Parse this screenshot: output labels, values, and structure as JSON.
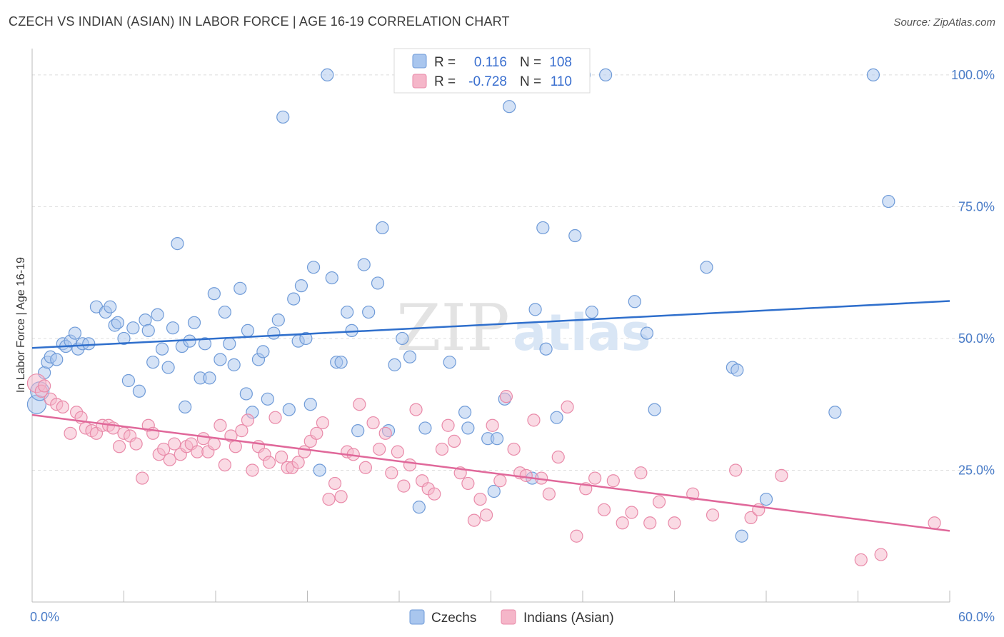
{
  "title": "CZECH VS INDIAN (ASIAN) IN LABOR FORCE | AGE 16-19 CORRELATION CHART",
  "source": "Source: ZipAtlas.com",
  "colors": {
    "czech_fill": "#a9c6ee",
    "czech_stroke": "#6f9bd8",
    "czech_line": "#2f6fcc",
    "indian_fill": "#f5b6c9",
    "indian_stroke": "#e98aa9",
    "indian_line": "#e0689a",
    "tick_label": "#4a7cc7",
    "grid": "#dddddd"
  },
  "chart_data": {
    "type": "scatter",
    "xlabel": "",
    "ylabel": "In Labor Force | Age 16-19",
    "xlim": [
      0,
      60
    ],
    "ylim": [
      0,
      105
    ],
    "x_tick_labels": [
      "0.0%",
      "60.0%"
    ],
    "y_ticks": [
      25,
      50,
      75,
      100
    ],
    "y_tick_labels": [
      "25.0%",
      "50.0%",
      "75.0%",
      "100.0%"
    ],
    "grid": "horizontal dashed",
    "legend_position": "top-center",
    "legend": [
      {
        "series": "Czechs",
        "r_label": "R =",
        "r": "0.116",
        "n_label": "N =",
        "n": "108"
      },
      {
        "series": "Indians (Asian)",
        "r_label": "R =",
        "r": "-0.728",
        "n_label": "N =",
        "n": "110"
      }
    ],
    "series": [
      {
        "name": "Czechs",
        "trend": {
          "x": [
            0,
            60
          ],
          "y": [
            48.2,
            57.1
          ]
        },
        "points": [
          [
            0.3,
            37.5
          ],
          [
            0.5,
            40.0
          ],
          [
            0.8,
            43.5
          ],
          [
            1.0,
            45.5
          ],
          [
            1.2,
            46.5
          ],
          [
            1.6,
            46.0
          ],
          [
            2.0,
            49.0
          ],
          [
            2.2,
            48.5
          ],
          [
            2.5,
            49.5
          ],
          [
            2.8,
            51.0
          ],
          [
            3.0,
            48.0
          ],
          [
            3.3,
            49.0
          ],
          [
            3.7,
            49.0
          ],
          [
            4.2,
            56.0
          ],
          [
            4.8,
            55.0
          ],
          [
            5.1,
            56.0
          ],
          [
            5.4,
            52.5
          ],
          [
            5.6,
            53.0
          ],
          [
            6.0,
            50.0
          ],
          [
            6.3,
            42.0
          ],
          [
            6.6,
            52.0
          ],
          [
            7.0,
            40.0
          ],
          [
            7.4,
            53.5
          ],
          [
            7.6,
            51.5
          ],
          [
            7.9,
            45.5
          ],
          [
            8.2,
            54.5
          ],
          [
            8.5,
            48.0
          ],
          [
            8.9,
            44.5
          ],
          [
            9.2,
            52.0
          ],
          [
            9.5,
            68.0
          ],
          [
            9.8,
            48.5
          ],
          [
            10.0,
            37.0
          ],
          [
            10.3,
            49.5
          ],
          [
            10.6,
            53.0
          ],
          [
            11.0,
            42.5
          ],
          [
            11.3,
            49.0
          ],
          [
            11.6,
            42.5
          ],
          [
            11.9,
            58.5
          ],
          [
            12.3,
            46.0
          ],
          [
            12.6,
            55.0
          ],
          [
            12.9,
            49.0
          ],
          [
            13.2,
            45.0
          ],
          [
            13.6,
            59.5
          ],
          [
            14.1,
            51.5
          ],
          [
            14.0,
            39.5
          ],
          [
            14.4,
            36.0
          ],
          [
            14.8,
            46.0
          ],
          [
            15.1,
            47.5
          ],
          [
            15.4,
            38.5
          ],
          [
            15.8,
            51.0
          ],
          [
            16.1,
            53.5
          ],
          [
            16.4,
            92.0
          ],
          [
            16.8,
            36.5
          ],
          [
            17.1,
            57.5
          ],
          [
            17.4,
            49.5
          ],
          [
            17.6,
            60.0
          ],
          [
            17.9,
            50.0
          ],
          [
            18.2,
            37.5
          ],
          [
            18.4,
            63.5
          ],
          [
            18.8,
            25.0
          ],
          [
            19.3,
            100.0
          ],
          [
            19.6,
            61.5
          ],
          [
            19.9,
            45.5
          ],
          [
            20.2,
            45.5
          ],
          [
            20.6,
            55.0
          ],
          [
            20.9,
            51.5
          ],
          [
            21.3,
            32.5
          ],
          [
            21.7,
            64.0
          ],
          [
            22.0,
            55.0
          ],
          [
            22.6,
            60.5
          ],
          [
            22.9,
            71.0
          ],
          [
            23.3,
            32.5
          ],
          [
            23.7,
            45.0
          ],
          [
            24.2,
            50.0
          ],
          [
            24.7,
            46.5
          ],
          [
            25.3,
            18.0
          ],
          [
            25.7,
            33.0
          ],
          [
            27.3,
            45.5
          ],
          [
            28.3,
            36.0
          ],
          [
            28.5,
            33.0
          ],
          [
            29.6,
            100.0
          ],
          [
            29.8,
            31.0
          ],
          [
            30.2,
            21.0
          ],
          [
            30.4,
            31.0
          ],
          [
            30.9,
            38.5
          ],
          [
            31.2,
            94.0
          ],
          [
            32.7,
            23.5
          ],
          [
            32.9,
            55.5
          ],
          [
            33.4,
            71.0
          ],
          [
            33.6,
            48.0
          ],
          [
            34.3,
            35.0
          ],
          [
            35.5,
            69.5
          ],
          [
            36.1,
            100.0
          ],
          [
            36.6,
            55.0
          ],
          [
            37.5,
            100.0
          ],
          [
            39.4,
            57.0
          ],
          [
            40.2,
            51.0
          ],
          [
            40.7,
            36.5
          ],
          [
            44.1,
            63.5
          ],
          [
            45.8,
            44.5
          ],
          [
            46.1,
            44.0
          ],
          [
            46.4,
            12.5
          ],
          [
            48.0,
            19.5
          ],
          [
            52.5,
            36.0
          ],
          [
            55.0,
            100.0
          ],
          [
            56.0,
            76.0
          ]
        ]
      },
      {
        "name": "Indians (Asian)",
        "trend": {
          "x": [
            0,
            60
          ],
          "y": [
            35.5,
            13.5
          ]
        },
        "points": [
          [
            0.3,
            41.5
          ],
          [
            0.6,
            40.0
          ],
          [
            0.8,
            41.0
          ],
          [
            1.2,
            38.5
          ],
          [
            1.6,
            37.5
          ],
          [
            2.0,
            37.0
          ],
          [
            2.5,
            32.0
          ],
          [
            2.9,
            36.0
          ],
          [
            3.2,
            35.0
          ],
          [
            3.5,
            33.0
          ],
          [
            3.9,
            32.5
          ],
          [
            4.2,
            32.0
          ],
          [
            4.6,
            33.5
          ],
          [
            5.0,
            33.5
          ],
          [
            5.3,
            33.0
          ],
          [
            5.7,
            29.5
          ],
          [
            6.0,
            32.0
          ],
          [
            6.4,
            31.5
          ],
          [
            6.8,
            30.0
          ],
          [
            7.2,
            23.5
          ],
          [
            7.6,
            33.5
          ],
          [
            7.9,
            32.0
          ],
          [
            8.3,
            28.0
          ],
          [
            8.6,
            29.0
          ],
          [
            9.0,
            27.0
          ],
          [
            9.3,
            30.0
          ],
          [
            9.7,
            28.0
          ],
          [
            10.1,
            29.5
          ],
          [
            10.4,
            30.0
          ],
          [
            10.8,
            28.5
          ],
          [
            11.2,
            31.0
          ],
          [
            11.5,
            28.5
          ],
          [
            11.9,
            30.0
          ],
          [
            12.3,
            33.5
          ],
          [
            12.6,
            26.0
          ],
          [
            13.0,
            31.5
          ],
          [
            13.3,
            29.5
          ],
          [
            13.7,
            32.5
          ],
          [
            14.1,
            34.5
          ],
          [
            14.4,
            25.0
          ],
          [
            14.8,
            29.5
          ],
          [
            15.2,
            28.0
          ],
          [
            15.5,
            26.5
          ],
          [
            15.9,
            35.0
          ],
          [
            16.3,
            27.5
          ],
          [
            16.7,
            25.5
          ],
          [
            17.0,
            25.5
          ],
          [
            17.4,
            26.5
          ],
          [
            17.8,
            28.5
          ],
          [
            18.2,
            30.5
          ],
          [
            18.6,
            32.0
          ],
          [
            19.0,
            34.0
          ],
          [
            19.4,
            19.5
          ],
          [
            19.8,
            22.5
          ],
          [
            20.2,
            20.0
          ],
          [
            20.6,
            28.5
          ],
          [
            21.0,
            28.0
          ],
          [
            21.4,
            37.5
          ],
          [
            21.8,
            25.5
          ],
          [
            22.3,
            34.0
          ],
          [
            22.7,
            29.0
          ],
          [
            23.1,
            32.0
          ],
          [
            23.5,
            24.5
          ],
          [
            23.9,
            28.5
          ],
          [
            24.3,
            22.0
          ],
          [
            24.7,
            26.0
          ],
          [
            25.1,
            36.5
          ],
          [
            25.5,
            23.0
          ],
          [
            25.9,
            21.5
          ],
          [
            26.3,
            20.5
          ],
          [
            26.8,
            29.0
          ],
          [
            27.2,
            33.5
          ],
          [
            27.6,
            30.5
          ],
          [
            28.0,
            24.5
          ],
          [
            28.5,
            22.5
          ],
          [
            28.9,
            15.5
          ],
          [
            29.3,
            19.5
          ],
          [
            29.7,
            16.5
          ],
          [
            30.1,
            33.5
          ],
          [
            30.6,
            23.0
          ],
          [
            31.0,
            39.0
          ],
          [
            31.5,
            29.0
          ],
          [
            31.9,
            24.5
          ],
          [
            32.3,
            24.0
          ],
          [
            32.8,
            34.5
          ],
          [
            33.3,
            23.5
          ],
          [
            33.8,
            20.5
          ],
          [
            34.4,
            27.5
          ],
          [
            35.0,
            37.0
          ],
          [
            35.6,
            12.5
          ],
          [
            36.2,
            21.5
          ],
          [
            36.8,
            23.5
          ],
          [
            37.4,
            17.5
          ],
          [
            38.0,
            23.0
          ],
          [
            38.6,
            15.0
          ],
          [
            39.2,
            17.0
          ],
          [
            39.8,
            24.5
          ],
          [
            40.4,
            15.0
          ],
          [
            41.0,
            19.0
          ],
          [
            42.0,
            15.0
          ],
          [
            43.2,
            20.5
          ],
          [
            44.5,
            16.5
          ],
          [
            46.0,
            25.0
          ],
          [
            47.0,
            16.0
          ],
          [
            47.5,
            17.5
          ],
          [
            49.0,
            24.0
          ],
          [
            54.2,
            8.0
          ],
          [
            55.5,
            9.0
          ],
          [
            59.0,
            15.0
          ]
        ]
      }
    ]
  },
  "legend_bottom": [
    {
      "label": "Czechs"
    },
    {
      "label": "Indians (Asian)"
    }
  ],
  "watermark": {
    "zip": "ZIP",
    "atlas": "atlas"
  }
}
